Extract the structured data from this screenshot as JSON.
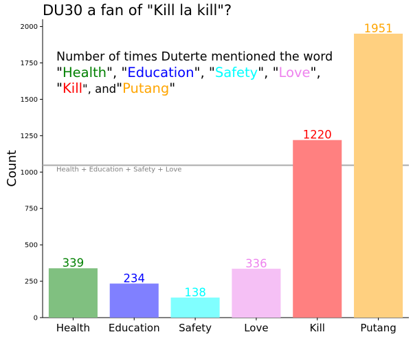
{
  "chart_data": {
    "type": "bar",
    "title": "DU30 a fan of \"Kill la kill\"?",
    "xlabel": "",
    "ylabel": "Count",
    "ylim": [
      0,
      2050
    ],
    "yticks": [
      0,
      250,
      500,
      750,
      1000,
      1250,
      1500,
      1750,
      2000
    ],
    "categories": [
      "Health",
      "Education",
      "Safety",
      "Love",
      "Kill",
      "Putang"
    ],
    "values": [
      339,
      234,
      138,
      336,
      1220,
      1951
    ],
    "bar_colors": [
      "#80c080",
      "#8080ff",
      "#80ffff",
      "#f5c0f5",
      "#ff8080",
      "#ffd080"
    ],
    "label_colors": [
      "#008000",
      "#0000ff",
      "#00ffff",
      "#ee82ee",
      "#ff0000",
      "#ffa500"
    ],
    "reference_line": {
      "value": 1047,
      "label": "Health + Education + Safety + Love",
      "color": "#aaaaaa"
    },
    "annotation": {
      "line1": "Number of times Duterte mentioned the word",
      "parts": [
        {
          "text": "\"",
          "color": "#000000"
        },
        {
          "text": "Health",
          "color": "#008000"
        },
        {
          "text": "\", \"",
          "color": "#000000"
        },
        {
          "text": "Education",
          "color": "#0000ff"
        },
        {
          "text": "\", \"",
          "color": "#000000"
        },
        {
          "text": "Safety",
          "color": "#00ffff"
        },
        {
          "text": "\", \"",
          "color": "#000000"
        },
        {
          "text": "Love",
          "color": "#ee82ee"
        },
        {
          "text": "\",",
          "color": "#000000"
        },
        {
          "text": "\"",
          "color": "#000000"
        },
        {
          "text": "Kill",
          "color": "#ff0000"
        },
        {
          "text": "\", and",
          "color": "#000000"
        },
        {
          "text": "\"",
          "color": "#000000"
        },
        {
          "text": "Putang",
          "color": "#ffa500"
        },
        {
          "text": "\"",
          "color": "#000000"
        }
      ]
    },
    "grid": false,
    "legend": "none"
  }
}
